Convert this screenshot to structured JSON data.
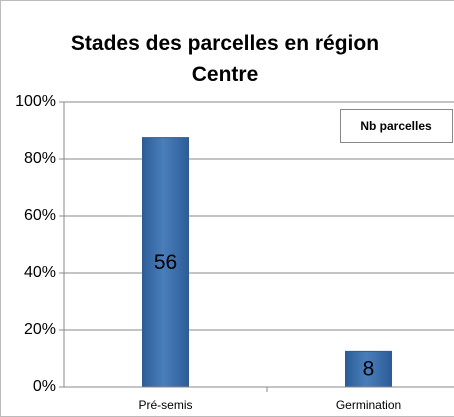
{
  "chart_data": {
    "type": "bar",
    "title": "Stades des parcelles en région Centre",
    "categories": [
      "Pré-semis",
      "Germination"
    ],
    "series": [
      {
        "name": "Nb parcelles",
        "color": "#4a7ebb",
        "values": [
          87.5,
          12.5
        ],
        "data_labels": [
          56,
          8
        ]
      }
    ],
    "ylim": [
      0,
      100
    ],
    "yticks": [
      {
        "value": 0,
        "label": "0%"
      },
      {
        "value": 20,
        "label": "20%"
      },
      {
        "value": 40,
        "label": "40%"
      },
      {
        "value": 60,
        "label": "60%"
      },
      {
        "value": 80,
        "label": "80%"
      },
      {
        "value": 100,
        "label": "100%"
      }
    ],
    "grid": true,
    "legend": "top-right"
  }
}
